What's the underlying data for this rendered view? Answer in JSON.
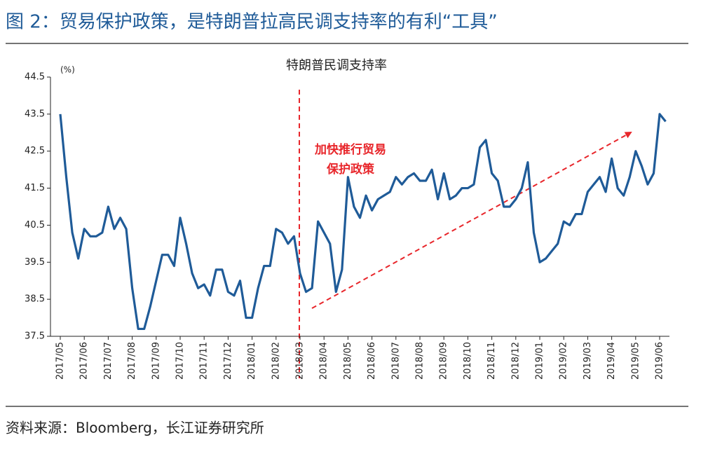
{
  "title": "图 2：贸易保护政策，是特朗普拉高民调支持率的有利“工具”",
  "source": "资料来源：Bloomberg，长江证券研究所",
  "chart_data": {
    "type": "line",
    "title": "特朗普民调支持率",
    "y_label": "(%)",
    "annotation": [
      "加快推行贸易",
      "保护政策"
    ],
    "categories": [
      "2017/05",
      null,
      null,
      null,
      "2017/06",
      null,
      null,
      null,
      "2017/07",
      null,
      null,
      null,
      "2017/08",
      null,
      null,
      null,
      "2017/09",
      null,
      null,
      null,
      "2017/10",
      null,
      null,
      null,
      "2017/11",
      null,
      null,
      null,
      "2017/12",
      null,
      null,
      null,
      "2018/01",
      null,
      null,
      null,
      "2018/02",
      null,
      null,
      null,
      "2018/03",
      null,
      null,
      null,
      "2018/04",
      null,
      null,
      null,
      "2018/05",
      null,
      null,
      null,
      "2018/06",
      null,
      null,
      null,
      "2018/07",
      null,
      null,
      null,
      "2018/08",
      null,
      null,
      null,
      "2018/09",
      null,
      null,
      null,
      "2018/10",
      null,
      null,
      null,
      "2018/11",
      null,
      null,
      null,
      "2018/12",
      null,
      null,
      null,
      "2019/01",
      null,
      null,
      null,
      "2019/02",
      null,
      null,
      null,
      "2019/03",
      null,
      null,
      null,
      "2019/04",
      null,
      null,
      null,
      "2019/05",
      null,
      null,
      null,
      "2019/06",
      null
    ],
    "series": [
      {
        "name": "特朗普民调支持率",
        "color": "#1f5b98",
        "values": [
          43.5,
          41.8,
          40.3,
          39.6,
          40.4,
          40.2,
          40.2,
          40.3,
          41.0,
          40.4,
          40.7,
          40.4,
          38.8,
          37.7,
          37.7,
          38.3,
          39.0,
          39.7,
          39.7,
          39.4,
          40.7,
          40.0,
          39.2,
          38.8,
          38.9,
          38.6,
          39.3,
          39.3,
          38.7,
          38.6,
          39.0,
          38.0,
          38.0,
          38.8,
          39.4,
          39.4,
          40.4,
          40.3,
          40.0,
          40.2,
          39.2,
          38.7,
          38.8,
          40.6,
          40.3,
          40.0,
          38.7,
          39.3,
          41.8,
          41.0,
          40.7,
          41.3,
          40.9,
          41.2,
          41.3,
          41.4,
          41.8,
          41.6,
          41.8,
          41.9,
          41.7,
          41.7,
          42.0,
          41.2,
          41.9,
          41.2,
          41.3,
          41.5,
          41.5,
          41.6,
          42.6,
          42.8,
          41.9,
          41.7,
          41.0,
          41.0,
          41.2,
          41.5,
          42.2,
          40.3,
          39.5,
          39.6,
          39.8,
          40.0,
          40.6,
          40.5,
          40.8,
          40.8,
          41.4,
          41.6,
          41.8,
          41.4,
          42.3,
          41.5,
          41.3,
          41.8,
          42.5,
          42.1,
          41.6,
          41.9,
          43.5,
          43.3
        ]
      }
    ],
    "ylim": [
      37.5,
      44.5
    ],
    "yticks": [
      37.5,
      38.5,
      39.5,
      40.5,
      41.5,
      42.5,
      43.5,
      44.5
    ]
  }
}
